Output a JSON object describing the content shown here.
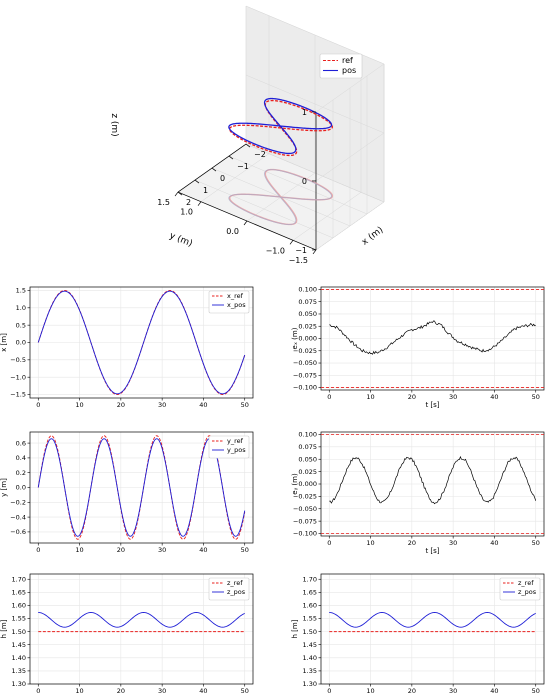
{
  "chart_data": [
    {
      "type": "line3d",
      "xlabel": "x (m)",
      "ylabel": "y (m)",
      "zlabel": "z (m)",
      "xticks": [
        "−2",
        "−1",
        "0",
        "1",
        "2"
      ],
      "yticks": [
        "−1.5",
        "−1.0",
        "0.0",
        "1.0",
        "1.5"
      ],
      "zticks": [
        "−1",
        "0",
        "1"
      ],
      "xlim": [
        -2,
        2
      ],
      "ylim": [
        -1.5,
        1.5
      ],
      "zlim": [
        -1,
        1
      ],
      "legend": {
        "position": "top-right",
        "entries": [
          "ref",
          "pos"
        ]
      },
      "series": [
        {
          "name": "ref",
          "style": "dashed",
          "color": "#e8201e",
          "curve": "figure-eight",
          "x_amplitude": 1.5,
          "y_amplitude": 0.7,
          "z": 0
        },
        {
          "name": "pos",
          "style": "solid",
          "color": "#1f1fd6",
          "curve": "figure-eight",
          "x_amplitude": 1.5,
          "y_amplitude": 0.7,
          "z": 0
        }
      ],
      "projection_z": -1
    },
    {
      "type": "line",
      "ylabel": "x [m]",
      "xlabel": "",
      "xlim": [
        -2,
        52
      ],
      "ylim": [
        -1.6,
        1.6
      ],
      "xticks": [
        0,
        10,
        20,
        30,
        40,
        50
      ],
      "yticks": [
        -1.5,
        -1.0,
        -0.5,
        0.0,
        0.5,
        1.0,
        1.5
      ],
      "grid": true,
      "legend": "top-right",
      "series": [
        {
          "name": "x_ref",
          "style": "dashed",
          "color": "#e8201e",
          "func": "sin",
          "amplitude": 1.5,
          "period": 25.5,
          "offset": 0
        },
        {
          "name": "x_pos",
          "style": "solid",
          "color": "#1f1fd6",
          "func": "sin",
          "amplitude": 1.48,
          "period": 25.5,
          "offset": 0
        }
      ]
    },
    {
      "type": "line",
      "ylabel": "eₓ (m)",
      "xlabel": "t [s]",
      "xlim": [
        -2,
        52
      ],
      "ylim": [
        -0.105,
        0.105
      ],
      "xticks": [
        0,
        10,
        20,
        30,
        40,
        50
      ],
      "yticks": [
        -0.1,
        -0.075,
        -0.05,
        -0.025,
        0.0,
        0.025,
        0.05,
        0.075,
        0.1
      ],
      "ytick_labels": [
        "−0.100",
        "−0.075",
        "−0.050",
        "−0.025",
        "0.000",
        "0.025",
        "0.050",
        "0.075",
        "0.100"
      ],
      "grid": true,
      "bounds": [
        0.1,
        -0.1
      ],
      "series": [
        {
          "name": "e_x",
          "color": "#000000",
          "points": [
            [
              0,
              0.028
            ],
            [
              2,
              0.022
            ],
            [
              4,
              0.005
            ],
            [
              6,
              -0.012
            ],
            [
              8,
              -0.025
            ],
            [
              10,
              -0.03
            ],
            [
              12,
              -0.028
            ],
            [
              14,
              -0.018
            ],
            [
              16,
              -0.005
            ],
            [
              18,
              0.008
            ],
            [
              20,
              0.018
            ],
            [
              22,
              0.022
            ],
            [
              24,
              0.03
            ],
            [
              25,
              0.035
            ],
            [
              27,
              0.028
            ],
            [
              29,
              0.01
            ],
            [
              31,
              -0.005
            ],
            [
              33,
              -0.012
            ],
            [
              35,
              -0.02
            ],
            [
              37,
              -0.025
            ],
            [
              39,
              -0.022
            ],
            [
              41,
              -0.01
            ],
            [
              43,
              0.005
            ],
            [
              45,
              0.02
            ],
            [
              47,
              0.025
            ],
            [
              49,
              0.028
            ],
            [
              50,
              0.028
            ]
          ]
        }
      ]
    },
    {
      "type": "line",
      "ylabel": "y [m]",
      "xlabel": "",
      "xlim": [
        -2,
        52
      ],
      "ylim": [
        -0.75,
        0.75
      ],
      "xticks": [
        0,
        10,
        20,
        30,
        40,
        50
      ],
      "yticks": [
        -0.6,
        -0.4,
        -0.2,
        0.0,
        0.2,
        0.4,
        0.6
      ],
      "grid": true,
      "legend": "top-right",
      "series": [
        {
          "name": "y_ref",
          "style": "dashed",
          "color": "#e8201e",
          "func": "sin",
          "amplitude": 0.7,
          "period": 12.75,
          "offset": 0
        },
        {
          "name": "y_pos",
          "style": "solid",
          "color": "#1f1fd6",
          "func": "sin",
          "amplitude": 0.66,
          "period": 12.75,
          "offset": 0
        }
      ]
    },
    {
      "type": "line",
      "ylabel": "eᵧ (m)",
      "xlabel": "t [s]",
      "xlim": [
        -2,
        52
      ],
      "ylim": [
        -0.105,
        0.105
      ],
      "xticks": [
        0,
        10,
        20,
        30,
        40,
        50
      ],
      "yticks": [
        -0.1,
        -0.075,
        -0.05,
        -0.025,
        0.0,
        0.025,
        0.05,
        0.075,
        0.1
      ],
      "ytick_labels": [
        "−0.100",
        "−0.075",
        "−0.050",
        "−0.025",
        "0.000",
        "0.025",
        "0.050",
        "0.075",
        "0.100"
      ],
      "grid": true,
      "bounds": [
        0.1,
        -0.1
      ],
      "series": [
        {
          "name": "e_y",
          "color": "#000000",
          "func": "sin",
          "amplitude": 0.045,
          "period": 12.75,
          "phase": -1.6,
          "offset": 0.008
        }
      ]
    },
    {
      "type": "line",
      "ylabel": "h [m]",
      "xlabel": "",
      "xlim": [
        -2,
        52
      ],
      "ylim": [
        1.3,
        1.72
      ],
      "xticks": [
        0,
        10,
        20,
        30,
        40,
        50
      ],
      "yticks": [
        1.3,
        1.35,
        1.4,
        1.45,
        1.5,
        1.55,
        1.6,
        1.65,
        1.7
      ],
      "grid": true,
      "legend": "top-right",
      "series": [
        {
          "name": "z_ref",
          "style": "dashed",
          "color": "#e8201e",
          "value": 1.5
        },
        {
          "name": "z_pos",
          "style": "solid",
          "color": "#1f1fd6",
          "func": "sin",
          "amplitude": 0.028,
          "period": 12.75,
          "phase": 1.57,
          "offset": 1.545
        }
      ]
    },
    {
      "type": "line",
      "ylabel": "h [m]",
      "xlabel": "",
      "xlim": [
        -2,
        52
      ],
      "ylim": [
        1.3,
        1.72
      ],
      "xticks": [
        0,
        10,
        20,
        30,
        40,
        50
      ],
      "yticks": [
        1.3,
        1.35,
        1.4,
        1.45,
        1.5,
        1.55,
        1.6,
        1.65,
        1.7
      ],
      "grid": true,
      "legend": "top-right",
      "series": [
        {
          "name": "z_ref",
          "style": "dashed",
          "color": "#e8201e",
          "value": 1.5
        },
        {
          "name": "z_pos",
          "style": "solid",
          "color": "#1f1fd6",
          "func": "sin",
          "amplitude": 0.028,
          "period": 12.75,
          "phase": 1.57,
          "offset": 1.545
        }
      ]
    }
  ]
}
